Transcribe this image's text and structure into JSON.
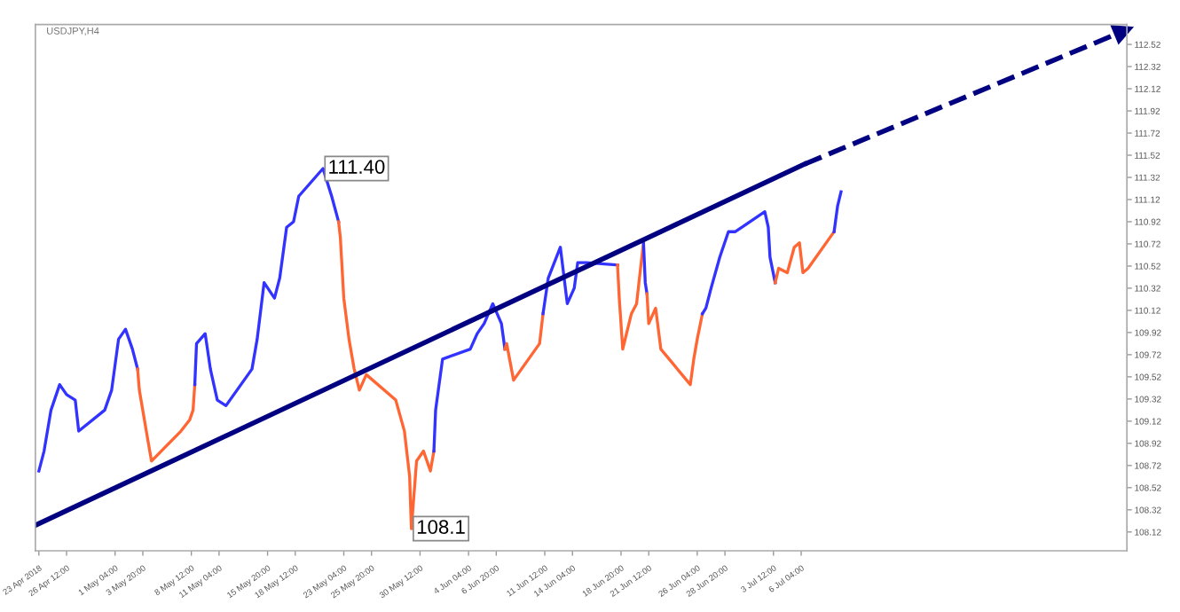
{
  "chart_data": {
    "type": "line",
    "title": "USDJPY,H4",
    "xlim": [
      "2018-04-23T12:00",
      "2018-08-06T12:00"
    ],
    "ylim": [
      107.95,
      112.7
    ],
    "xticks": [
      {
        "value": "2018-04-23T20:00",
        "label": "23 Apr 2018"
      },
      {
        "value": "2018-04-26T12:00",
        "label": "26 Apr 12:00"
      },
      {
        "value": "2018-05-01T04:00",
        "label": "1 May 04:00"
      },
      {
        "value": "2018-05-03T20:00",
        "label": "3 May 20:00"
      },
      {
        "value": "2018-05-08T12:00",
        "label": "8 May 12:00"
      },
      {
        "value": "2018-05-11T04:00",
        "label": "11 May 04:00"
      },
      {
        "value": "2018-05-15T20:00",
        "label": "15 May 20:00"
      },
      {
        "value": "2018-05-18T12:00",
        "label": "18 May 12:00"
      },
      {
        "value": "2018-05-23T04:00",
        "label": "23 May 04:00"
      },
      {
        "value": "2018-05-25T20:00",
        "label": "25 May 20:00"
      },
      {
        "value": "2018-05-30T12:00",
        "label": "30 May 12:00"
      },
      {
        "value": "2018-06-04T04:00",
        "label": "4 Jun 04:00"
      },
      {
        "value": "2018-06-06T20:00",
        "label": "6 Jun 20:00"
      },
      {
        "value": "2018-06-11T12:00",
        "label": "11 Jun 12:00"
      },
      {
        "value": "2018-06-14T04:00",
        "label": "14 Jun 04:00"
      },
      {
        "value": "2018-06-18T20:00",
        "label": "18 Jun 20:00"
      },
      {
        "value": "2018-06-21T12:00",
        "label": "21 Jun 12:00"
      },
      {
        "value": "2018-06-26T04:00",
        "label": "26 Jun 04:00"
      },
      {
        "value": "2018-06-28T20:00",
        "label": "28 Jun 20:00"
      },
      {
        "value": "2018-07-03T12:00",
        "label": "3 Jul 12:00"
      },
      {
        "value": "2018-07-06T04:00",
        "label": "6 Jul 04:00"
      }
    ],
    "yticks": [
      {
        "value": 108.12,
        "label": "108.12"
      },
      {
        "value": 108.32,
        "label": "108.32"
      },
      {
        "value": 108.52,
        "label": "108.52"
      },
      {
        "value": 108.72,
        "label": "108.72"
      },
      {
        "value": 108.92,
        "label": "108.92"
      },
      {
        "value": 109.12,
        "label": "109.12"
      },
      {
        "value": 109.32,
        "label": "109.32"
      },
      {
        "value": 109.52,
        "label": "109.52"
      },
      {
        "value": 109.72,
        "label": "109.72"
      },
      {
        "value": 109.92,
        "label": "109.92"
      },
      {
        "value": 110.12,
        "label": "110.12"
      },
      {
        "value": 110.32,
        "label": "110.32"
      },
      {
        "value": 110.52,
        "label": "110.52"
      },
      {
        "value": 110.72,
        "label": "110.72"
      },
      {
        "value": 110.92,
        "label": "110.92"
      },
      {
        "value": 111.12,
        "label": "111.12"
      },
      {
        "value": 111.32,
        "label": "111.32"
      },
      {
        "value": 111.52,
        "label": "111.52"
      },
      {
        "value": 111.72,
        "label": "111.72"
      },
      {
        "value": 111.92,
        "label": "111.92"
      },
      {
        "value": 112.12,
        "label": "112.12"
      },
      {
        "value": 112.32,
        "label": "112.32"
      },
      {
        "value": 112.52,
        "label": "112.52"
      }
    ],
    "grid": false,
    "legend": false,
    "marker": "none",
    "line_style": "solid",
    "annotations": [
      {
        "text": "111.40",
        "x": "2018-05-21T04:00",
        "y": 111.4
      },
      {
        "text": "108.1",
        "x": "2018-05-29T16:00",
        "y": 108.15
      }
    ],
    "series": [
      {
        "color": "#3333ff",
        "x": [
          "2018-04-23T20:00",
          "2018-04-24T08:00",
          "2018-04-25T00:00",
          "2018-04-25T20:00",
          "2018-04-26T12:00",
          "2018-04-27T08:00",
          "2018-04-27T16:00",
          "2018-04-30T04:00",
          "2018-04-30T20:00",
          "2018-05-01T12:00",
          "2018-05-02T04:00",
          "2018-05-02T20:00",
          "2018-05-03T08:00"
        ],
        "values": [
          108.67,
          108.85,
          109.22,
          109.45,
          109.36,
          109.31,
          109.03,
          109.22,
          109.4,
          109.86,
          109.95,
          109.77,
          109.59
        ]
      },
      {
        "color": "#ff6633",
        "x": [
          "2018-05-03T08:00",
          "2018-05-03T12:00",
          "2018-05-04T08:00",
          "2018-05-04T16:00",
          "2018-05-07T12:00",
          "2018-05-08T08:00",
          "2018-05-08T16:00",
          "2018-05-08T20:00"
        ],
        "values": [
          109.59,
          109.4,
          108.94,
          108.76,
          109.03,
          109.13,
          109.22,
          109.45
        ]
      },
      {
        "color": "#3333ff",
        "x": [
          "2018-05-08T20:00",
          "2018-05-09T00:00",
          "2018-05-09T20:00",
          "2018-05-10T08:00",
          "2018-05-11T00:00",
          "2018-05-11T20:00",
          "2018-05-14T08:00",
          "2018-05-14T20:00",
          "2018-05-15T12:00",
          "2018-05-16T12:00",
          "2018-05-17T00:00",
          "2018-05-17T16:00",
          "2018-05-18T08:00",
          "2018-05-18T20:00",
          "2018-05-21T04:00",
          "2018-05-22T00:00",
          "2018-05-22T16:00"
        ],
        "values": [
          109.45,
          109.82,
          109.91,
          109.59,
          109.31,
          109.26,
          109.59,
          109.86,
          110.37,
          110.23,
          110.41,
          110.87,
          110.92,
          111.15,
          111.4,
          111.15,
          110.92
        ]
      },
      {
        "color": "#ff6633",
        "x": [
          "2018-05-22T16:00",
          "2018-05-22T20:00",
          "2018-05-23T04:00",
          "2018-05-23T16:00",
          "2018-05-24T04:00",
          "2018-05-24T16:00",
          "2018-05-25T08:00",
          "2018-05-28T04:00",
          "2018-05-29T00:00",
          "2018-05-29T12:00",
          "2018-05-29T16:00",
          "2018-05-30T04:00",
          "2018-05-30T20:00",
          "2018-05-31T12:00",
          "2018-05-31T20:00"
        ],
        "values": [
          110.92,
          110.78,
          110.23,
          109.86,
          109.59,
          109.4,
          109.54,
          109.31,
          109.03,
          108.62,
          108.15,
          108.76,
          108.85,
          108.67,
          108.85
        ]
      },
      {
        "color": "#3333ff",
        "x": [
          "2018-05-31T20:00",
          "2018-06-01T00:00",
          "2018-06-01T16:00",
          "2018-06-04T08:00",
          "2018-06-05T00:00",
          "2018-06-05T16:00",
          "2018-06-06T12:00",
          "2018-06-07T08:00",
          "2018-06-07T16:00"
        ],
        "values": [
          108.85,
          109.22,
          109.68,
          109.77,
          109.91,
          110.0,
          110.18,
          110.0,
          109.77
        ]
      },
      {
        "color": "#ff6633",
        "x": [
          "2018-06-07T16:00",
          "2018-06-07T20:00",
          "2018-06-08T12:00",
          "2018-06-11T00:00",
          "2018-06-11T08:00"
        ],
        "values": [
          109.77,
          109.82,
          109.49,
          109.82,
          110.09
        ]
      },
      {
        "color": "#3333ff",
        "x": [
          "2018-06-11T08:00",
          "2018-06-11T20:00",
          "2018-06-13T00:00",
          "2018-06-13T16:00",
          "2018-06-14T08:00",
          "2018-06-14T16:00",
          "2018-06-15T12:00",
          "2018-06-18T12:00"
        ],
        "values": [
          110.09,
          110.41,
          110.69,
          110.18,
          110.32,
          110.55,
          110.55,
          110.53
        ]
      },
      {
        "color": "#ff6633",
        "x": [
          "2018-06-18T12:00",
          "2018-06-18T16:00",
          "2018-06-19T00:00",
          "2018-06-19T20:00",
          "2018-06-20T08:00",
          "2018-06-20T16:00",
          "2018-06-21T00:00"
        ],
        "values": [
          110.53,
          110.23,
          109.77,
          110.09,
          110.18,
          110.46,
          110.73
        ]
      },
      {
        "color": "#3333ff",
        "x": [
          "2018-06-21T00:00",
          "2018-06-21T04:00",
          "2018-06-21T08:00"
        ],
        "values": [
          110.73,
          110.37,
          110.27
        ]
      },
      {
        "color": "#ff6633",
        "x": [
          "2018-06-21T08:00",
          "2018-06-21T12:00",
          "2018-06-22T04:00",
          "2018-06-22T16:00",
          "2018-06-25T12:00",
          "2018-06-25T20:00",
          "2018-06-26T04:00",
          "2018-06-26T16:00"
        ],
        "values": [
          110.27,
          110.0,
          110.14,
          109.77,
          109.45,
          109.68,
          109.86,
          110.09
        ]
      },
      {
        "color": "#3333ff",
        "x": [
          "2018-06-26T16:00",
          "2018-06-27T00:00",
          "2018-06-27T12:00",
          "2018-06-28T08:00",
          "2018-06-29T04:00",
          "2018-06-29T20:00",
          "2018-07-02T16:00",
          "2018-07-03T00:00",
          "2018-07-03T04:00",
          "2018-07-03T16:00"
        ],
        "values": [
          110.09,
          110.14,
          110.32,
          110.6,
          110.83,
          110.83,
          111.01,
          110.87,
          110.6,
          110.37
        ]
      },
      {
        "color": "#ff6633",
        "x": [
          "2018-07-03T16:00",
          "2018-07-04T00:00",
          "2018-07-04T20:00",
          "2018-07-05T12:00",
          "2018-07-06T00:00",
          "2018-07-06T08:00",
          "2018-07-06T20:00",
          "2018-07-09T08:00"
        ],
        "values": [
          110.37,
          110.5,
          110.46,
          110.69,
          110.73,
          110.46,
          110.5,
          110.83
        ]
      },
      {
        "color": "#3333ff",
        "x": [
          "2018-07-09T08:00",
          "2018-07-09T16:00",
          "2018-07-10T00:00"
        ],
        "values": [
          110.83,
          111.06,
          111.19
        ]
      },
      {
        "color": "#000080",
        "x": [
          "2018-04-23T12:00",
          "2018-07-06T12:00"
        ],
        "values": [
          108.18,
          111.44
        ]
      },
      {
        "color": "#000080",
        "x": [
          "2018-07-06T12:00",
          "2018-08-06T04:00"
        ],
        "values": [
          111.44,
          112.64
        ],
        "line_style": "dashed",
        "marker": "triangle"
      }
    ]
  }
}
